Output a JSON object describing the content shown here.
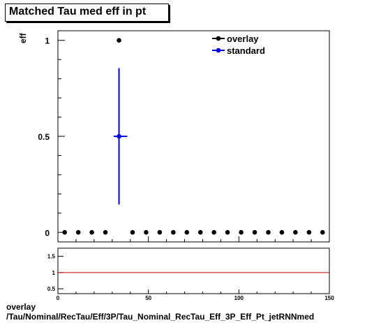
{
  "title": "Matched Tau med eff in pt",
  "footer": {
    "line1": "overlay",
    "line2": "/Tau/Nominal/RecTau/Eff/3P/Tau_Nominal_RecTau_Eff_3P_Eff_Pt_jetRNNmed"
  },
  "chart_data": [
    {
      "type": "scatter",
      "ylabel": "eff",
      "xlim": [
        0,
        150
      ],
      "ylim": [
        -0.05,
        1.05
      ],
      "y_ticks": [
        0,
        0.5,
        1
      ],
      "y_tick_labels": [
        "0",
        "0.5",
        "1"
      ],
      "legend": {
        "placement": "top-right",
        "entries": [
          "overlay",
          "standard"
        ]
      },
      "series": [
        {
          "name": "overlay",
          "color": "#000000",
          "x": [
            3.75,
            11.25,
            18.75,
            26.25,
            33.75,
            41.25,
            48.75,
            56.25,
            63.75,
            71.25,
            78.75,
            86.25,
            93.75,
            101.25,
            108.75,
            116.25,
            123.75,
            131.25,
            138.75,
            146.25
          ],
          "y": [
            0,
            0,
            0,
            0,
            1,
            0,
            0,
            0,
            0,
            0,
            0,
            0,
            0,
            0,
            0,
            0,
            0,
            0,
            0,
            0
          ]
        },
        {
          "name": "standard",
          "color": "#0000ee",
          "x": [
            33.75
          ],
          "y": [
            0.5
          ],
          "xerr": [
            3.75
          ],
          "yerr_low": [
            0.355
          ],
          "yerr_high": [
            0.355
          ]
        }
      ]
    },
    {
      "type": "line",
      "xlim": [
        0,
        150
      ],
      "ylim": [
        0.35,
        1.75
      ],
      "x_ticks": [
        0,
        50,
        100,
        150
      ],
      "x_tick_labels": [
        "0",
        "50",
        "100",
        "150"
      ],
      "y_ticks": [
        0.5,
        1,
        1.5
      ],
      "y_tick_labels": [
        "0.5",
        "1",
        "1.5"
      ],
      "reference_line": {
        "y": 1,
        "color": "#cc0000"
      }
    }
  ]
}
